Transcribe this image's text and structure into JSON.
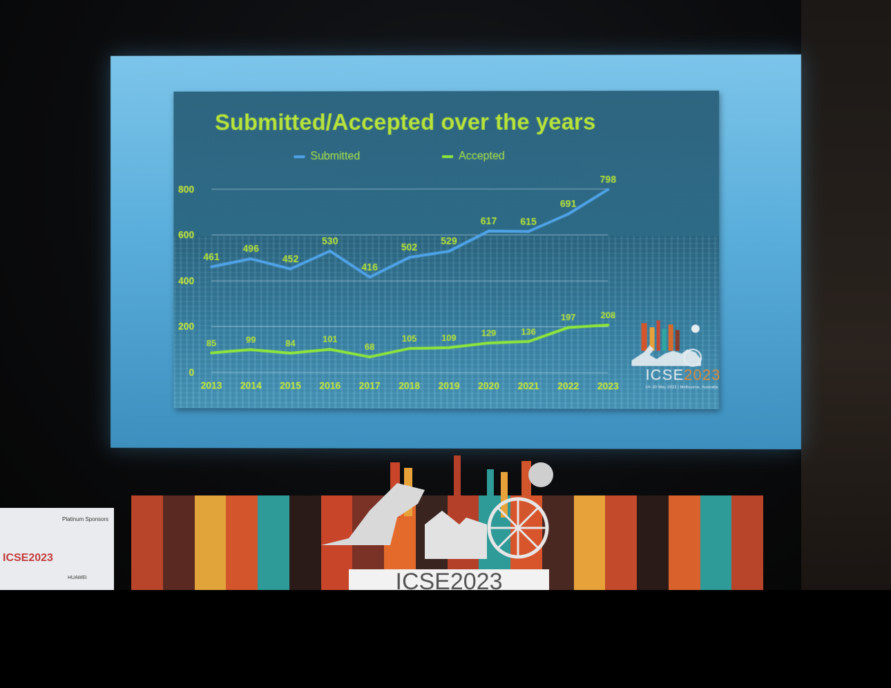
{
  "chart_data": {
    "type": "line",
    "title": "Submitted/Accepted over the years",
    "categories": [
      "2013",
      "2014",
      "2015",
      "2016",
      "2017",
      "2018",
      "2019",
      "2020",
      "2021",
      "2022",
      "2023"
    ],
    "series": [
      {
        "name": "Submitted",
        "values": [
          461,
          496,
          452,
          530,
          416,
          502,
          529,
          617,
          615,
          691,
          798
        ],
        "color": "#4fa3e8"
      },
      {
        "name": "Accepted",
        "values": [
          85,
          99,
          84,
          101,
          68,
          105,
          109,
          129,
          136,
          197,
          208
        ],
        "color": "#8ee63a"
      }
    ],
    "ylim": [
      0,
      800
    ],
    "yticks": [
      0,
      200,
      400,
      600,
      800
    ],
    "grid": true,
    "legend_position": "top",
    "xlabel": "",
    "ylabel": ""
  },
  "logo": {
    "name": "ICSE",
    "year": "2023",
    "subtitle": "14–20 May 2023 | Melbourne, Australia"
  },
  "stage": {
    "logo_text": "ICSE2023"
  },
  "sponsor": {
    "title": "Platinum Sponsors",
    "icse": "ICSE2023",
    "huawei": "HUAWEI"
  },
  "colors": {
    "title": "#b8e43a",
    "screen": "#5aaedb",
    "slide": "#2e6580"
  }
}
